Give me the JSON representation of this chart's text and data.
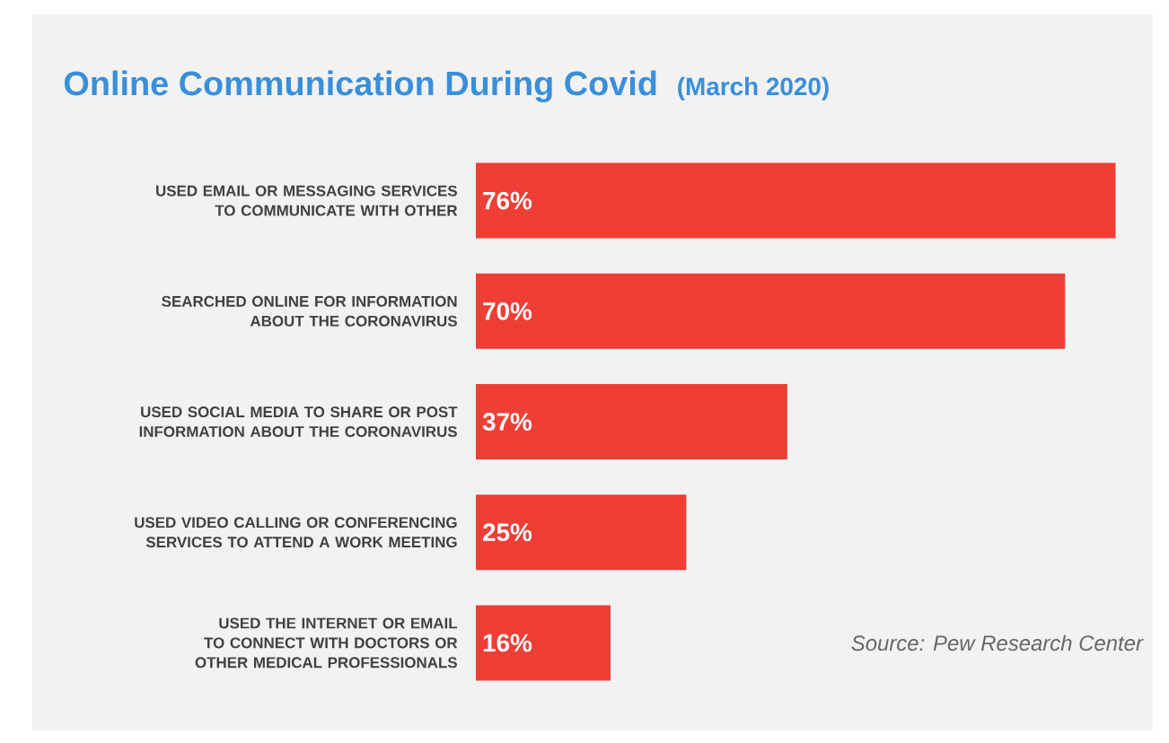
{
  "chart_data": {
    "type": "bar",
    "orientation": "horizontal",
    "title": "Online Communication During Covid",
    "subtitle": "(March 2020)",
    "categories": [
      "USED EMAIL OR MESSAGING SERVICES TO COMMUNICATE WITH OTHER",
      "SEARCHED ONLINE FOR INFORMATION ABOUT THE CORONAVIRUS",
      "USED SOCIAL MEDIA TO SHARE OR POST INFORMATION ABOUT THE CORONAVIRUS",
      "USED VIDEO CALLING OR CONFERENCING SERVICES TO ATTEND A WORK MEETING",
      "USED THE INTERNET OR EMAIL TO CONNECT WITH DOCTORS OR OTHER MEDICAL PROFESSIONALS"
    ],
    "values": [
      76,
      70,
      37,
      25,
      16
    ],
    "value_labels": [
      "76%",
      "70%",
      "37%",
      "25%",
      "16%"
    ],
    "color": "#ef3e36",
    "xlim": [
      0,
      80
    ],
    "annotations": [
      "Source: Pew Research Center"
    ]
  }
}
